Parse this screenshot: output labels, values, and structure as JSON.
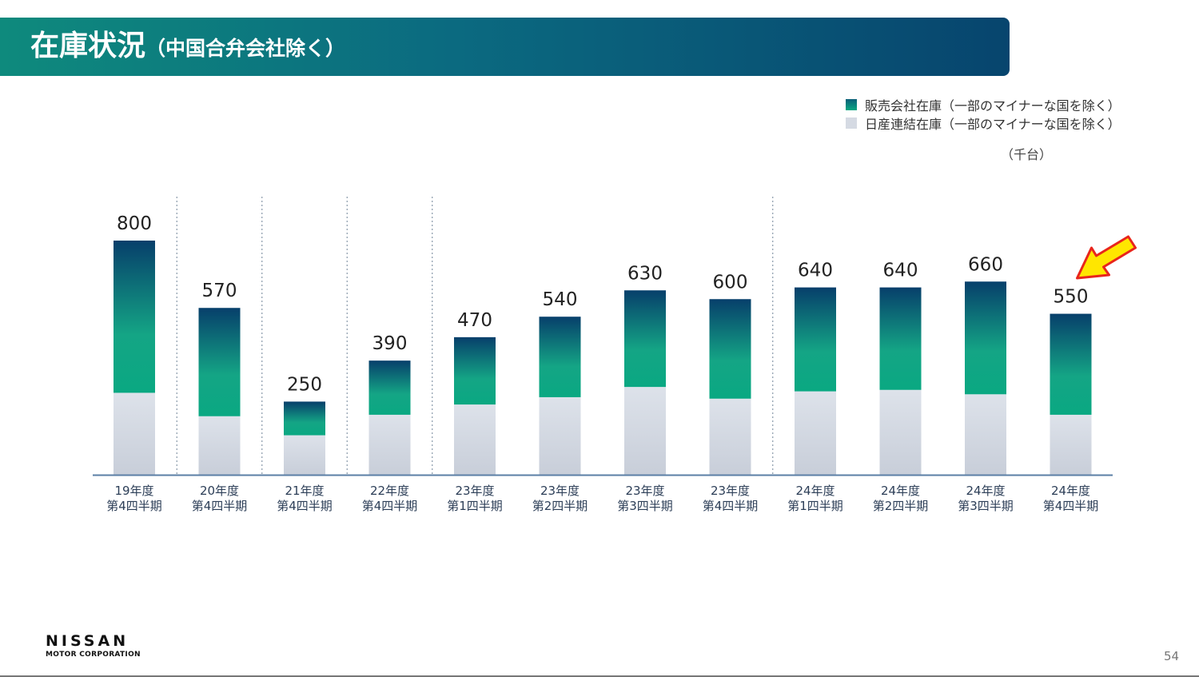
{
  "header": {
    "title": "在庫状況",
    "subtitle": "（中国合弁会社除く）"
  },
  "legend": {
    "items": [
      {
        "label": "販売会社在庫（一部のマイナーな国を除く）",
        "color": "#0a9f7f"
      },
      {
        "label": "日産連結在庫（一部のマイナーな国を除く）",
        "color": "#d5dae3"
      }
    ]
  },
  "unit_label": "（千台）",
  "chart_data": {
    "type": "bar",
    "stacked": true,
    "title": "",
    "xlabel": "",
    "ylabel": "",
    "ylim": [
      0,
      800
    ],
    "grid": false,
    "legend_position": "top-right",
    "categories": [
      [
        "19年度",
        "第4四半期"
      ],
      [
        "20年度",
        "第4四半期"
      ],
      [
        "21年度",
        "第4四半期"
      ],
      [
        "22年度",
        "第4四半期"
      ],
      [
        "23年度",
        "第1四半期"
      ],
      [
        "23年度",
        "第2四半期"
      ],
      [
        "23年度",
        "第3四半期"
      ],
      [
        "23年度",
        "第4四半期"
      ],
      [
        "24年度",
        "第1四半期"
      ],
      [
        "24年度",
        "第2四半期"
      ],
      [
        "24年度",
        "第3四半期"
      ],
      [
        "24年度",
        "第4四半期"
      ]
    ],
    "series": [
      {
        "name": "日産連結在庫（一部のマイナーな国を除く）",
        "values": [
          280,
          200,
          135,
          205,
          240,
          265,
          300,
          260,
          285,
          290,
          275,
          205
        ]
      },
      {
        "name": "販売会社在庫（一部のマイナーな国を除く）",
        "values": [
          520,
          370,
          115,
          185,
          230,
          275,
          330,
          340,
          355,
          350,
          385,
          345
        ]
      }
    ],
    "totals": [
      "800",
      "570",
      "250",
      "390",
      "470",
      "540",
      "630",
      "600",
      "640",
      "640",
      "660",
      "550"
    ],
    "separators_after_index": [
      0,
      1,
      2,
      3,
      7
    ],
    "highlight_index": 11,
    "colors": {
      "nissan_bottom": "#c8ced9",
      "nissan_top": "#dde2ea",
      "dealer_bottom": "#0aa882",
      "dealer_mid": "#16a084",
      "dealer_top": "#073f6b",
      "axis": "#5b7fa6",
      "separator": "#8899aa",
      "arrow_fill": "#ffe600",
      "arrow_stroke": "#e8251c"
    }
  },
  "footer": {
    "brand": "NISSAN",
    "brand_sub": "MOTOR CORPORATION",
    "page_number": "54"
  }
}
